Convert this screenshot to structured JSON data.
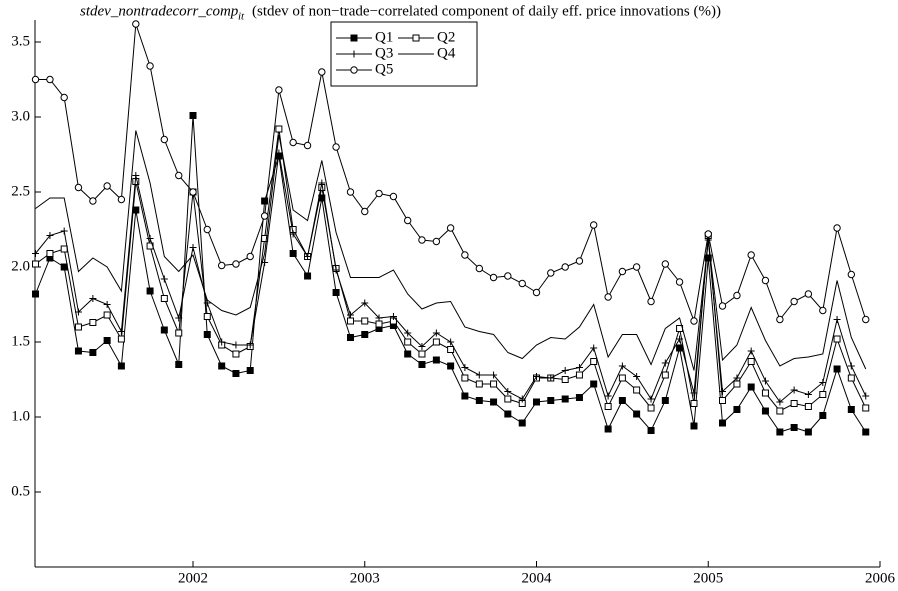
{
  "chart_data": {
    "type": "line",
    "title": "stdev_nontradecorr_comp",
    "title_subscript": "it",
    "subtitle": "(stdev of non−trade−correlated component of daily eff. price innovations  (%))",
    "x": [
      2001.083,
      2001.167,
      2001.25,
      2001.333,
      2001.417,
      2001.5,
      2001.583,
      2001.667,
      2001.75,
      2001.833,
      2001.917,
      2002.0,
      2002.083,
      2002.167,
      2002.25,
      2002.333,
      2002.417,
      2002.5,
      2002.583,
      2002.667,
      2002.75,
      2002.833,
      2002.917,
      2003.0,
      2003.083,
      2003.167,
      2003.25,
      2003.333,
      2003.417,
      2003.5,
      2003.583,
      2003.667,
      2003.75,
      2003.833,
      2003.917,
      2004.0,
      2004.083,
      2004.167,
      2004.25,
      2004.333,
      2004.417,
      2004.5,
      2004.583,
      2004.667,
      2004.75,
      2004.833,
      2004.917,
      2005.0,
      2005.083,
      2005.167,
      2005.25,
      2005.333,
      2005.417,
      2005.5,
      2005.583,
      2005.667,
      2005.75,
      2005.833,
      2005.917
    ],
    "xlim": [
      2001.08,
      2006
    ],
    "xticks": [
      2002,
      2003,
      2004,
      2005,
      2006
    ],
    "ylim": [
      0,
      3.78
    ],
    "yticks": [
      0.5,
      {
        "value": 1,
        "label": "1.0"
      },
      1.5,
      {
        "value": 2,
        "label": "2.0"
      },
      2.5,
      {
        "value": 3,
        "label": "3.0"
      },
      3.5
    ],
    "legend": "upper center",
    "series": [
      {
        "name": "Q1",
        "color": "#000000",
        "marker": "filled-square",
        "values": [
          1.82,
          2.06,
          2.0,
          1.44,
          1.43,
          1.51,
          1.34,
          2.38,
          1.84,
          1.58,
          1.35,
          3.01,
          1.55,
          1.34,
          1.29,
          1.31,
          2.44,
          2.74,
          2.09,
          1.94,
          2.46,
          1.83,
          1.53,
          1.55,
          1.59,
          1.61,
          1.42,
          1.35,
          1.38,
          1.34,
          1.14,
          1.11,
          1.1,
          1.02,
          0.96,
          1.1,
          1.11,
          1.12,
          1.13,
          1.22,
          0.92,
          1.11,
          1.02,
          0.91,
          1.11,
          1.46,
          0.94,
          2.06,
          0.96,
          1.05,
          1.2,
          1.04,
          0.9,
          0.93,
          0.9,
          1.01,
          1.32,
          1.05,
          0.9
        ]
      },
      {
        "name": "Q2",
        "color": "#000000",
        "marker": "open-square",
        "values": [
          2.02,
          2.09,
          2.12,
          1.6,
          1.63,
          1.68,
          1.52,
          2.57,
          2.14,
          1.79,
          1.56,
          2.5,
          1.67,
          1.48,
          1.42,
          1.47,
          2.19,
          2.92,
          2.25,
          2.07,
          2.53,
          1.99,
          1.64,
          1.64,
          1.62,
          1.64,
          1.5,
          1.42,
          1.5,
          1.45,
          1.26,
          1.22,
          1.22,
          1.12,
          1.09,
          1.26,
          1.26,
          1.25,
          1.28,
          1.37,
          1.07,
          1.26,
          1.18,
          1.06,
          1.28,
          1.59,
          1.09,
          2.21,
          1.11,
          1.22,
          1.37,
          1.16,
          1.04,
          1.09,
          1.07,
          1.15,
          1.52,
          1.26,
          1.06
        ]
      },
      {
        "name": "Q3",
        "color": "#000000",
        "marker": "plus",
        "values": [
          2.09,
          2.21,
          2.24,
          1.7,
          1.79,
          1.75,
          1.57,
          2.61,
          2.19,
          1.92,
          1.66,
          2.13,
          1.76,
          1.5,
          1.48,
          1.48,
          2.03,
          2.76,
          2.22,
          2.07,
          2.56,
          1.98,
          1.68,
          1.76,
          1.66,
          1.67,
          1.56,
          1.47,
          1.56,
          1.5,
          1.33,
          1.28,
          1.28,
          1.17,
          1.12,
          1.27,
          1.26,
          1.31,
          1.33,
          1.46,
          1.14,
          1.34,
          1.27,
          1.12,
          1.36,
          1.52,
          1.16,
          2.18,
          1.17,
          1.26,
          1.44,
          1.24,
          1.1,
          1.18,
          1.15,
          1.23,
          1.65,
          1.34,
          1.14
        ]
      },
      {
        "name": "Q4",
        "color": "#000000",
        "marker": "none",
        "values": [
          2.39,
          2.46,
          2.46,
          1.97,
          2.06,
          2.0,
          1.84,
          2.91,
          2.56,
          2.07,
          1.97,
          2.08,
          1.78,
          1.71,
          1.68,
          1.73,
          2.09,
          2.88,
          2.38,
          2.31,
          2.71,
          2.23,
          1.93,
          1.93,
          1.93,
          1.98,
          1.82,
          1.72,
          1.76,
          1.77,
          1.6,
          1.57,
          1.55,
          1.43,
          1.39,
          1.48,
          1.53,
          1.52,
          1.6,
          1.75,
          1.4,
          1.55,
          1.55,
          1.35,
          1.59,
          1.66,
          1.31,
          2.18,
          1.38,
          1.48,
          1.73,
          1.51,
          1.34,
          1.39,
          1.4,
          1.42,
          1.91,
          1.53,
          1.32
        ]
      },
      {
        "name": "Q5",
        "color": "#000000",
        "marker": "open-circle",
        "values": [
          3.25,
          3.25,
          3.13,
          2.53,
          2.44,
          2.54,
          2.45,
          3.62,
          3.34,
          2.85,
          2.61,
          2.5,
          2.25,
          2.01,
          2.02,
          2.07,
          2.34,
          3.18,
          2.83,
          2.81,
          3.3,
          2.8,
          2.5,
          2.37,
          2.49,
          2.47,
          2.31,
          2.18,
          2.17,
          2.26,
          2.08,
          1.99,
          1.93,
          1.94,
          1.89,
          1.83,
          1.96,
          2.0,
          2.04,
          2.28,
          1.8,
          1.97,
          2.0,
          1.77,
          2.02,
          1.9,
          1.64,
          2.22,
          1.74,
          1.81,
          2.08,
          1.91,
          1.65,
          1.77,
          1.82,
          1.71,
          2.26,
          1.95,
          1.65
        ]
      }
    ]
  }
}
